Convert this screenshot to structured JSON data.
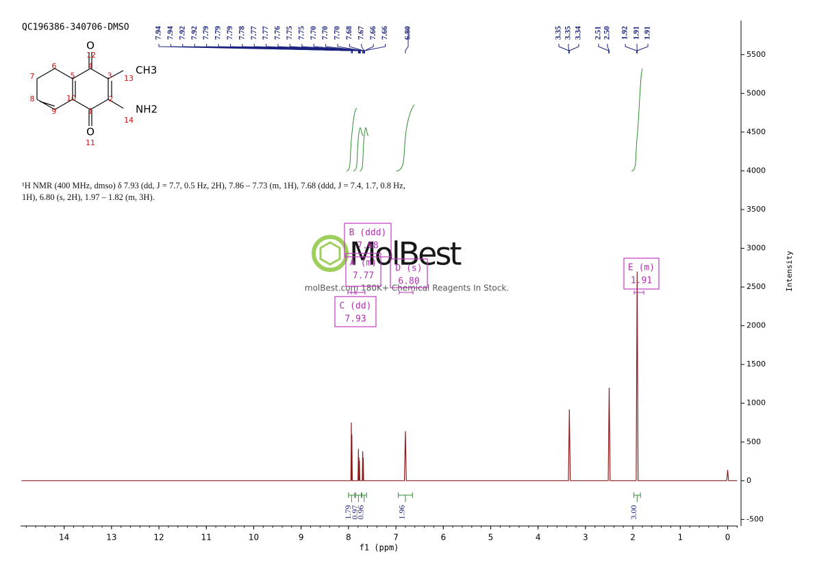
{
  "chart_data": {
    "type": "line",
    "title": "QC196386-340706-DMSO",
    "description": "¹H NMR (400 MHz, dmso) δ 7.93 (dd, J = 7.7, 0.5 Hz, 2H), 7.86 – 7.73 (m, 1H), 7.68 (ddd, J = 7.4, 1.7, 0.8 Hz, 1H), 6.80 (s, 2H), 1.97 – 1.82 (m, 3H).",
    "x_label": "f1 (ppm)",
    "y_label": "Intensity",
    "xlim": [
      14.92,
      -0.21
    ],
    "xticks": [
      14,
      13,
      12,
      11,
      10,
      9,
      8,
      7,
      6,
      5,
      4,
      3,
      2,
      1,
      0
    ],
    "ylim": [
      -585,
      5940
    ],
    "yticks": [
      -500,
      0,
      500,
      1000,
      1500,
      2000,
      2500,
      3000,
      3500,
      4000,
      4500,
      5000,
      5500
    ],
    "x": [
      14.9,
      7.95,
      7.94,
      7.935,
      7.93,
      7.92,
      7.8,
      7.79,
      7.785,
      7.78,
      7.775,
      7.77,
      7.76,
      7.71,
      7.7,
      7.695,
      7.69,
      7.68,
      6.82,
      6.8,
      6.78,
      3.36,
      3.34,
      3.32,
      2.52,
      2.5,
      2.48,
      1.93,
      1.91,
      1.89,
      0.02,
      0,
      -0.02,
      -0.2
    ],
    "series": [
      {
        "color": "#8b1c1c",
        "values": [
          0,
          0,
          750,
          0,
          600,
          0,
          0,
          410,
          0,
          300,
          0,
          260,
          0,
          0,
          380,
          0,
          300,
          0,
          0,
          640,
          0,
          0,
          920,
          0,
          0,
          1200,
          0,
          0,
          2700,
          0,
          0,
          140,
          0,
          0
        ]
      }
    ],
    "peak_labels": [
      "7.94",
      "7.94",
      "7.92",
      "7.92",
      "7.79",
      "7.79",
      "7.79",
      "7.78",
      "7.77",
      "7.77",
      "7.76",
      "7.75",
      "7.75",
      "7.70",
      "7.70",
      "7.70",
      "7.68",
      "7.67",
      "7.66",
      "7.66",
      "6.80",
      "3.35",
      "3.35",
      "3.34",
      "2.51",
      "2.50",
      "1.92",
      "1.91",
      "1.91"
    ],
    "integrals": {
      "values": [
        1.79,
        0.97,
        0.96,
        1.96,
        3
      ],
      "value_labels": [
        "1.79",
        "0.97",
        "0.96",
        "1.96",
        "3.00"
      ],
      "ranges": [
        [
          8.0,
          7.87
        ],
        [
          7.85,
          7.73
        ],
        [
          7.72,
          7.62
        ],
        [
          6.95,
          6.65
        ],
        [
          1.98,
          1.84
        ]
      ]
    },
    "multiplets": [
      {
        "label": "B (ddd)",
        "shift": "7.68"
      },
      {
        "label": "A (m)",
        "shift": "7.77"
      },
      {
        "label": "D (s)",
        "shift": "6.80"
      },
      {
        "label": "C (dd)",
        "shift": "7.93"
      },
      {
        "label": "E (m)",
        "shift": "1.91"
      }
    ],
    "watermark": {
      "logo": "MolBest",
      "text": "molBest.com 180K+ Chemical Reagents In Stock."
    },
    "structure": {
      "atoms": [
        "O",
        "CH3",
        "NH2",
        "O"
      ],
      "numbers": [
        "12",
        "4",
        "3",
        "13",
        "6",
        "5",
        "7",
        "10",
        "2",
        "8",
        "9",
        "1",
        "14",
        "11"
      ]
    }
  }
}
